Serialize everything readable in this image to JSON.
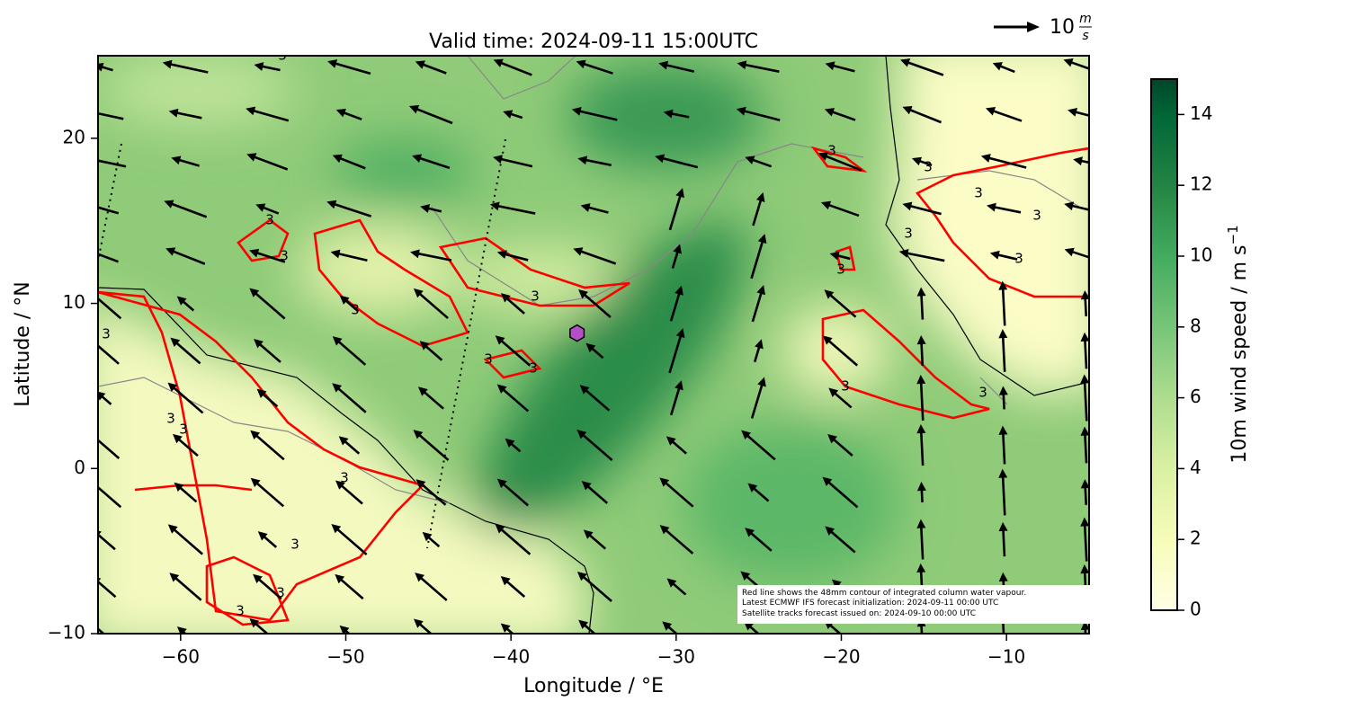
{
  "chart_data": {
    "type": "map",
    "title": "Valid time: 2024-09-11 15:00UTC",
    "x_label": "Longitude / °E",
    "y_label": "Latitude / °N",
    "xlim": [
      -65,
      -5
    ],
    "ylim": [
      -10,
      25
    ],
    "xticks": [
      {
        "value": -60,
        "label": "−60"
      },
      {
        "value": -50,
        "label": "−50"
      },
      {
        "value": -40,
        "label": "−40"
      },
      {
        "value": -30,
        "label": "−30"
      },
      {
        "value": -20,
        "label": "−20"
      },
      {
        "value": -10,
        "label": "−10"
      }
    ],
    "yticks": [
      {
        "value": -10,
        "label": "−10"
      },
      0,
      10,
      20
    ],
    "contour_level": 3,
    "marker": {
      "lon": -36,
      "lat": 8.2,
      "color": "#b44fc8"
    },
    "quiver_key": {
      "value": 10,
      "unit_top": "m",
      "unit_bottom": "s"
    },
    "colorbar": {
      "label": "10m wind speed / m s",
      "label_sup": "−1",
      "lim": [
        0,
        15
      ],
      "ticks": [
        0,
        2,
        4,
        6,
        8,
        10,
        12,
        14
      ]
    },
    "notes": [
      "Red line shows the 48mm contour of integrated column water vapour.",
      "Latest ECMWF IFS forecast initialization: 2024-09-11 00:00 UTC",
      "Satellite tracks forecast issued on: 2024-09-10 00:00 UTC"
    ]
  }
}
